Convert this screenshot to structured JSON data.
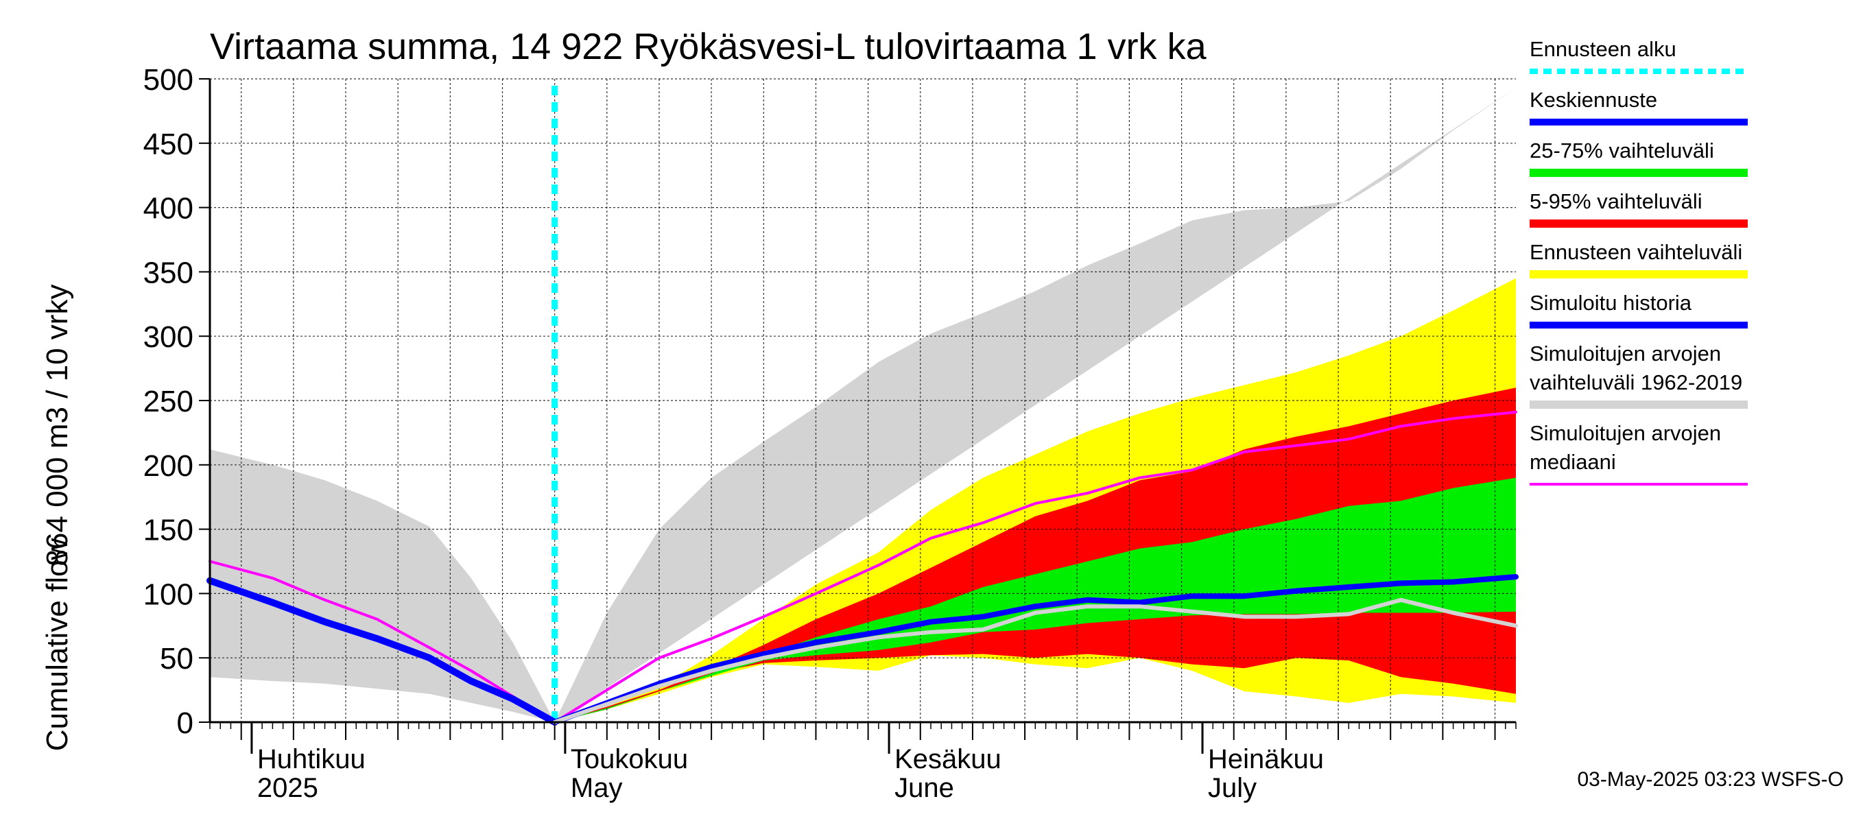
{
  "chart_data": {
    "type": "area",
    "title": "Virtaama summa, 14 922 Ryökäsvesi-L tulovirtaama 1 vrk ka",
    "ylabel_line1": "864 000 m3 / 10 vrky",
    "ylabel_line2": "Cumulative flow",
    "ylim": [
      0,
      500
    ],
    "yticks": [
      0,
      50,
      100,
      150,
      200,
      250,
      300,
      350,
      400,
      450,
      500
    ],
    "xlim": [
      "2025-03-28",
      "2025-07-31"
    ],
    "grid": true,
    "x_month_labels": [
      {
        "date": "2025-04-01",
        "fi": "Huhtikuu",
        "en": "2025"
      },
      {
        "date": "2025-05-01",
        "fi": "Toukokuu",
        "en": "May"
      },
      {
        "date": "2025-06-01",
        "fi": "Kesäkuu",
        "en": "June"
      },
      {
        "date": "2025-07-01",
        "fi": "Heinäkuu",
        "en": "July"
      }
    ],
    "forecast_start": "2025-04-30",
    "series": [
      {
        "name": "Simuloitujen arvojen vaihteluväli 1962-2019",
        "color": "#d3d3d3",
        "kind": "band",
        "upper": [
          [
            "2025-03-28",
            212
          ],
          [
            "2025-04-03",
            200
          ],
          [
            "2025-04-08",
            188
          ],
          [
            "2025-04-13",
            172
          ],
          [
            "2025-04-18",
            152
          ],
          [
            "2025-04-22",
            112
          ],
          [
            "2025-04-26",
            62
          ],
          [
            "2025-04-30",
            0
          ],
          [
            "2025-05-05",
            85
          ],
          [
            "2025-05-10",
            150
          ],
          [
            "2025-05-15",
            190
          ],
          [
            "2025-05-20",
            218
          ],
          [
            "2025-05-25",
            245
          ],
          [
            "2025-05-31",
            280
          ],
          [
            "2025-06-05",
            302
          ],
          [
            "2025-06-10",
            318
          ],
          [
            "2025-06-15",
            335
          ],
          [
            "2025-06-20",
            355
          ],
          [
            "2025-06-25",
            372
          ],
          [
            "2025-06-30",
            390
          ],
          [
            "2025-07-05",
            398
          ],
          [
            "2025-07-10",
            400
          ],
          [
            "2025-07-15",
            405
          ],
          [
            "2025-07-20",
            430
          ],
          [
            "2025-07-25",
            460
          ],
          [
            "2025-07-31",
            493
          ]
        ],
        "lower": [
          [
            "2025-03-28",
            35
          ],
          [
            "2025-04-03",
            32
          ],
          [
            "2025-04-08",
            30
          ],
          [
            "2025-04-13",
            26
          ],
          [
            "2025-04-18",
            22
          ],
          [
            "2025-04-22",
            15
          ],
          [
            "2025-04-26",
            8
          ],
          [
            "2025-04-30",
            0
          ]
        ]
      },
      {
        "name": "Ennusteen vaihteluväli",
        "color": "#ffff00",
        "kind": "band",
        "upper": [
          [
            "2025-04-30",
            0
          ],
          [
            "2025-05-05",
            12
          ],
          [
            "2025-05-10",
            28
          ],
          [
            "2025-05-15",
            52
          ],
          [
            "2025-05-20",
            80
          ],
          [
            "2025-05-25",
            107
          ],
          [
            "2025-05-31",
            132
          ],
          [
            "2025-06-05",
            165
          ],
          [
            "2025-06-10",
            190
          ],
          [
            "2025-06-15",
            208
          ],
          [
            "2025-06-20",
            226
          ],
          [
            "2025-06-25",
            240
          ],
          [
            "2025-06-30",
            252
          ],
          [
            "2025-07-05",
            262
          ],
          [
            "2025-07-10",
            272
          ],
          [
            "2025-07-15",
            285
          ],
          [
            "2025-07-20",
            300
          ],
          [
            "2025-07-25",
            320
          ],
          [
            "2025-07-31",
            345
          ]
        ],
        "lower": [
          [
            "2025-04-30",
            0
          ],
          [
            "2025-05-05",
            10
          ],
          [
            "2025-05-10",
            22
          ],
          [
            "2025-05-15",
            35
          ],
          [
            "2025-05-20",
            45
          ],
          [
            "2025-05-25",
            43
          ],
          [
            "2025-05-31",
            40
          ],
          [
            "2025-06-05",
            52
          ],
          [
            "2025-06-10",
            50
          ],
          [
            "2025-06-15",
            45
          ],
          [
            "2025-06-20",
            42
          ],
          [
            "2025-06-25",
            50
          ],
          [
            "2025-06-30",
            40
          ],
          [
            "2025-07-05",
            24
          ],
          [
            "2025-07-10",
            20
          ],
          [
            "2025-07-15",
            15
          ],
          [
            "2025-07-20",
            22
          ],
          [
            "2025-07-25",
            20
          ],
          [
            "2025-07-31",
            15
          ]
        ]
      },
      {
        "name": "5-95% vaihteluväli",
        "color": "#ff0000",
        "kind": "band",
        "upper": [
          [
            "2025-04-30",
            0
          ],
          [
            "2025-05-05",
            12
          ],
          [
            "2025-05-10",
            25
          ],
          [
            "2025-05-15",
            42
          ],
          [
            "2025-05-20",
            60
          ],
          [
            "2025-05-25",
            80
          ],
          [
            "2025-05-31",
            100
          ],
          [
            "2025-06-05",
            120
          ],
          [
            "2025-06-10",
            140
          ],
          [
            "2025-06-15",
            160
          ],
          [
            "2025-06-20",
            172
          ],
          [
            "2025-06-25",
            188
          ],
          [
            "2025-06-30",
            195
          ],
          [
            "2025-07-05",
            212
          ],
          [
            "2025-07-10",
            222
          ],
          [
            "2025-07-15",
            230
          ],
          [
            "2025-07-20",
            240
          ],
          [
            "2025-07-25",
            250
          ],
          [
            "2025-07-31",
            260
          ]
        ],
        "lower": [
          [
            "2025-04-30",
            0
          ],
          [
            "2025-05-05",
            10
          ],
          [
            "2025-05-10",
            24
          ],
          [
            "2025-05-15",
            38
          ],
          [
            "2025-05-20",
            46
          ],
          [
            "2025-05-25",
            48
          ],
          [
            "2025-05-31",
            50
          ],
          [
            "2025-06-05",
            52
          ],
          [
            "2025-06-10",
            53
          ],
          [
            "2025-06-15",
            50
          ],
          [
            "2025-06-20",
            53
          ],
          [
            "2025-06-25",
            50
          ],
          [
            "2025-06-30",
            45
          ],
          [
            "2025-07-05",
            42
          ],
          [
            "2025-07-10",
            50
          ],
          [
            "2025-07-15",
            48
          ],
          [
            "2025-07-20",
            35
          ],
          [
            "2025-07-25",
            30
          ],
          [
            "2025-07-31",
            22
          ]
        ]
      },
      {
        "name": "25-75% vaihteluväli",
        "color": "#00ee00",
        "kind": "band",
        "upper": [
          [
            "2025-04-30",
            0
          ],
          [
            "2025-05-05",
            11
          ],
          [
            "2025-05-10",
            24
          ],
          [
            "2025-05-15",
            38
          ],
          [
            "2025-05-20",
            52
          ],
          [
            "2025-05-25",
            66
          ],
          [
            "2025-05-31",
            80
          ],
          [
            "2025-06-05",
            90
          ],
          [
            "2025-06-10",
            105
          ],
          [
            "2025-06-15",
            115
          ],
          [
            "2025-06-20",
            125
          ],
          [
            "2025-06-25",
            135
          ],
          [
            "2025-06-30",
            140
          ],
          [
            "2025-07-05",
            150
          ],
          [
            "2025-07-10",
            158
          ],
          [
            "2025-07-15",
            168
          ],
          [
            "2025-07-20",
            172
          ],
          [
            "2025-07-25",
            182
          ],
          [
            "2025-07-31",
            190
          ]
        ],
        "lower": [
          [
            "2025-04-30",
            0
          ],
          [
            "2025-05-05",
            10
          ],
          [
            "2025-05-10",
            24
          ],
          [
            "2025-05-15",
            36
          ],
          [
            "2025-05-20",
            48
          ],
          [
            "2025-05-25",
            52
          ],
          [
            "2025-05-31",
            56
          ],
          [
            "2025-06-05",
            62
          ],
          [
            "2025-06-10",
            70
          ],
          [
            "2025-06-15",
            72
          ],
          [
            "2025-06-20",
            77
          ],
          [
            "2025-06-25",
            80
          ],
          [
            "2025-06-30",
            83
          ],
          [
            "2025-07-05",
            84
          ],
          [
            "2025-07-10",
            84
          ],
          [
            "2025-07-15",
            85
          ],
          [
            "2025-07-20",
            85
          ],
          [
            "2025-07-25",
            85
          ],
          [
            "2025-07-31",
            86
          ]
        ]
      },
      {
        "name": "Simuloitujen arvojen mediaani",
        "color": "#ff00ff",
        "kind": "line",
        "width": 4,
        "values": [
          [
            "2025-03-28",
            125
          ],
          [
            "2025-04-03",
            112
          ],
          [
            "2025-04-08",
            95
          ],
          [
            "2025-04-13",
            80
          ],
          [
            "2025-04-18",
            58
          ],
          [
            "2025-04-22",
            40
          ],
          [
            "2025-04-26",
            20
          ],
          [
            "2025-04-30",
            0
          ],
          [
            "2025-05-05",
            25
          ],
          [
            "2025-05-10",
            50
          ],
          [
            "2025-05-15",
            65
          ],
          [
            "2025-05-20",
            82
          ],
          [
            "2025-05-25",
            100
          ],
          [
            "2025-05-31",
            122
          ],
          [
            "2025-06-05",
            143
          ],
          [
            "2025-06-10",
            155
          ],
          [
            "2025-06-15",
            170
          ],
          [
            "2025-06-20",
            178
          ],
          [
            "2025-06-25",
            190
          ],
          [
            "2025-06-30",
            196
          ],
          [
            "2025-07-05",
            210
          ],
          [
            "2025-07-10",
            215
          ],
          [
            "2025-07-15",
            220
          ],
          [
            "2025-07-20",
            230
          ],
          [
            "2025-07-25",
            236
          ],
          [
            "2025-07-31",
            241
          ]
        ]
      },
      {
        "name": "Simuloitu historia",
        "color": "#0000ff",
        "kind": "line",
        "width": 10,
        "values": [
          [
            "2025-03-28",
            110
          ],
          [
            "2025-04-03",
            93
          ],
          [
            "2025-04-08",
            78
          ],
          [
            "2025-04-13",
            65
          ],
          [
            "2025-04-18",
            50
          ],
          [
            "2025-04-22",
            32
          ],
          [
            "2025-04-26",
            18
          ],
          [
            "2025-04-30",
            0
          ]
        ]
      },
      {
        "name": "Keskiennuste",
        "color": "#0000ff",
        "kind": "line",
        "width": 8,
        "values": [
          [
            "2025-04-30",
            0
          ],
          [
            "2025-05-05",
            15
          ],
          [
            "2025-05-10",
            30
          ],
          [
            "2025-05-15",
            43
          ],
          [
            "2025-05-20",
            53
          ],
          [
            "2025-05-25",
            62
          ],
          [
            "2025-05-31",
            70
          ],
          [
            "2025-06-05",
            78
          ],
          [
            "2025-06-10",
            82
          ],
          [
            "2025-06-15",
            90
          ],
          [
            "2025-06-20",
            95
          ],
          [
            "2025-06-25",
            93
          ],
          [
            "2025-06-30",
            98
          ],
          [
            "2025-07-05",
            98
          ],
          [
            "2025-07-10",
            102
          ],
          [
            "2025-07-15",
            105
          ],
          [
            "2025-07-20",
            108
          ],
          [
            "2025-07-25",
            109
          ],
          [
            "2025-07-31",
            113
          ]
        ]
      },
      {
        "name": "Simuloitu (grey line)",
        "color": "#d3d3d3",
        "kind": "line",
        "width": 6,
        "values": [
          [
            "2025-04-30",
            0
          ],
          [
            "2025-05-05",
            14
          ],
          [
            "2025-05-10",
            28
          ],
          [
            "2025-05-15",
            40
          ],
          [
            "2025-05-20",
            50
          ],
          [
            "2025-05-25",
            58
          ],
          [
            "2025-05-31",
            66
          ],
          [
            "2025-06-05",
            70
          ],
          [
            "2025-06-10",
            72
          ],
          [
            "2025-06-15",
            85
          ],
          [
            "2025-06-20",
            90
          ],
          [
            "2025-06-25",
            90
          ],
          [
            "2025-06-30",
            86
          ],
          [
            "2025-07-05",
            82
          ],
          [
            "2025-07-10",
            82
          ],
          [
            "2025-07-15",
            84
          ],
          [
            "2025-07-20",
            95
          ],
          [
            "2025-07-25",
            85
          ],
          [
            "2025-07-31",
            75
          ]
        ]
      }
    ],
    "legend": {
      "placement": "right",
      "entries": [
        {
          "label": "Ennusteen alku",
          "color": "#00ffff",
          "style": "dashed"
        },
        {
          "label": "Keskiennuste",
          "color": "#0000ff",
          "style": "line"
        },
        {
          "label": "25-75% vaihteluväli",
          "color": "#00ee00",
          "style": "thick"
        },
        {
          "label": "5-95% vaihteluväli",
          "color": "#ff0000",
          "style": "thick"
        },
        {
          "label": "Ennusteen vaihteluväli",
          "color": "#ffff00",
          "style": "thick"
        },
        {
          "label": "Simuloitu historia",
          "color": "#0000ff",
          "style": "line"
        },
        {
          "label": "Simuloitujen arvojen vaihteluväli 1962-2019",
          "lines": [
            "Simuloitujen arvojen",
            "vaihteluväli 1962-2019"
          ],
          "color": "#d3d3d3",
          "style": "thick"
        },
        {
          "label": "Simuloitujen arvojen mediaani",
          "lines": [
            "Simuloitujen arvojen",
            "mediaani"
          ],
          "color": "#ff00ff",
          "style": "thin"
        }
      ]
    },
    "timestamp": "03-May-2025 03:23 WSFS-O"
  }
}
